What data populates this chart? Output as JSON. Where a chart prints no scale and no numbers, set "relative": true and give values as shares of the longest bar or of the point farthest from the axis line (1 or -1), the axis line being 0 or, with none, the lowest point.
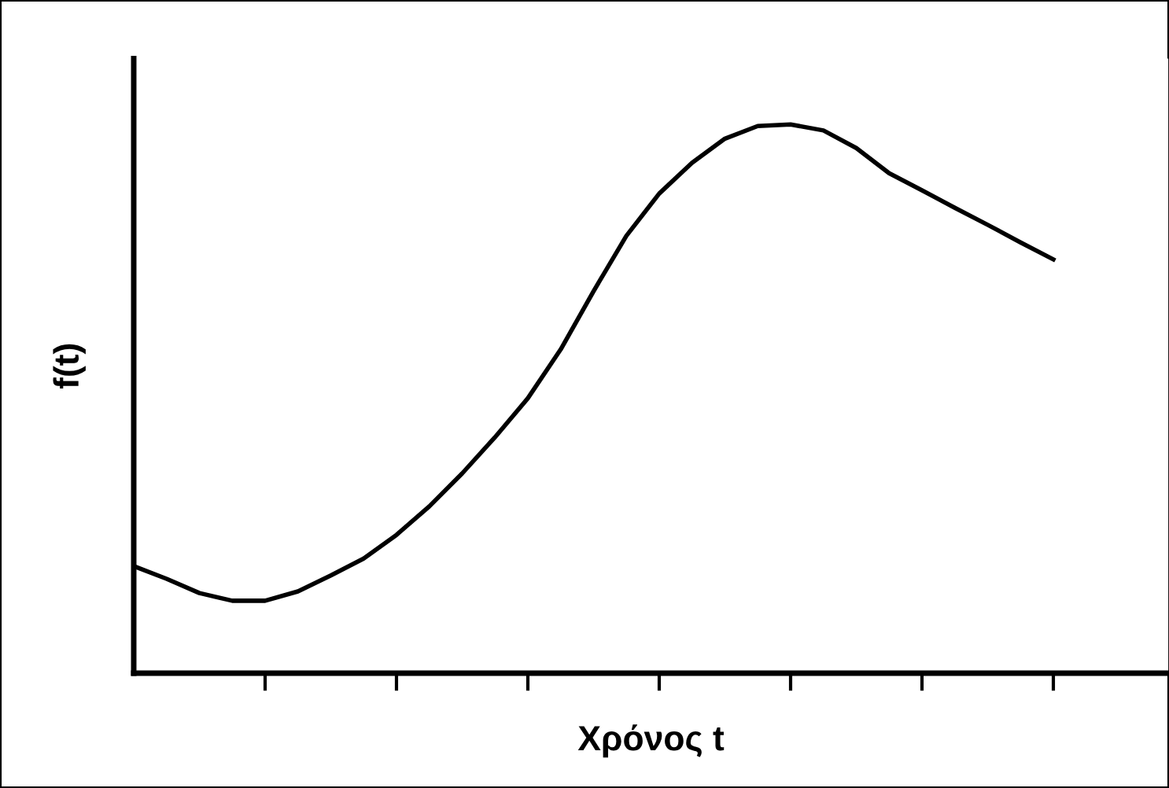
{
  "chart_data": {
    "type": "line",
    "relative": true,
    "xlabel": "Χρόνος t",
    "ylabel": "f(t)",
    "color": "#000000",
    "marker": "none",
    "line_style": "solid",
    "grid": false,
    "legend": false,
    "tick_labels": false,
    "categories": [
      null,
      null,
      null,
      null,
      null,
      null,
      null,
      null,
      null,
      null,
      null,
      null,
      null,
      null,
      null,
      null,
      null,
      null,
      null,
      null,
      null,
      null,
      null,
      null,
      null,
      null,
      null,
      null,
      null
    ],
    "values": [
      0.195,
      0.172,
      0.146,
      0.132,
      0.132,
      0.149,
      0.178,
      0.209,
      0.252,
      0.304,
      0.364,
      0.43,
      0.501,
      0.59,
      0.696,
      0.797,
      0.874,
      0.93,
      0.974,
      0.997,
      1.0,
      0.989,
      0.957,
      0.911,
      0.88,
      0.848,
      0.817,
      0.785,
      0.754
    ]
  }
}
